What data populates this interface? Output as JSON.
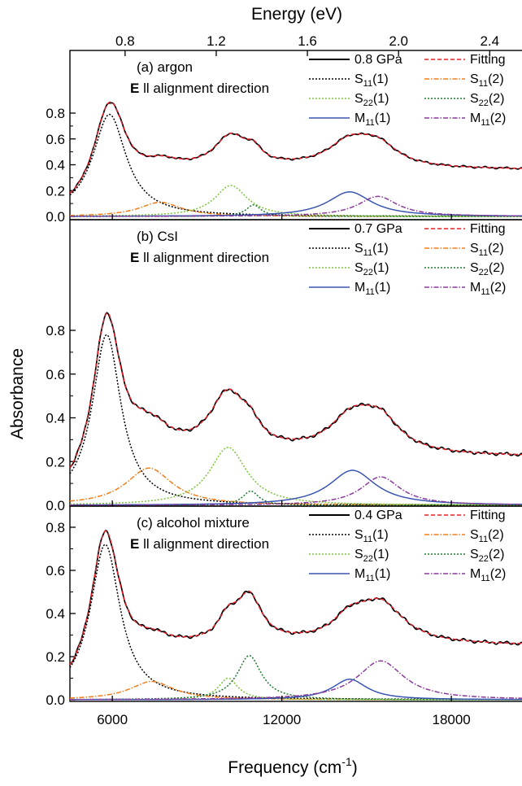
{
  "chart_data": {
    "type": "line",
    "x_axis": {
      "label": "Frequency (cm",
      "label_sup": "-1",
      "label_close": ")",
      "range": [
        4500,
        20500
      ],
      "ticks": [
        6000,
        12000,
        18000
      ],
      "tick_labels": [
        "6000",
        "12000",
        "18000"
      ]
    },
    "top_axis": {
      "label": "Energy (eV)",
      "ticks": [
        0.8,
        1.2,
        1.6,
        2.0,
        2.4
      ],
      "tick_labels": [
        "0.8",
        "1.2",
        "1.6",
        "2.0",
        "2.4"
      ],
      "unit_conversion_cm_per_eV": 8065.54
    },
    "y_axis": {
      "label": "Absorbance",
      "range": [
        0,
        0.95
      ],
      "ticks": [
        0.0,
        0.2,
        0.4,
        0.6,
        0.8
      ],
      "tick_labels": [
        "0.0",
        "0.2",
        "0.4",
        "0.6",
        "0.8"
      ]
    },
    "legend_names": {
      "fitting": "Fitting",
      "S11_1": "S11(1)",
      "S11_2": "S11(2)",
      "S22_1": "S22(1)",
      "S22_2": "S22(2)",
      "M11_1": "M11(1)",
      "M11_2": "M11(2)"
    },
    "colors": {
      "data": "#000000",
      "fitting": "#e8202a",
      "S11_1": "#000000",
      "S11_2": "#f07d1a",
      "S22_1": "#7dc43c",
      "S22_2": "#1e7a2e",
      "M11_1": "#3a56b0",
      "M11_2": "#8a3a9a"
    },
    "panels": [
      {
        "label": "(a) argon",
        "subtitle_bold": "E",
        "subtitle_rest": " ll alignment direction",
        "pressure": "0.8 GPa",
        "components": {
          "S11_1": {
            "center": 5900,
            "amplitude": 0.79,
            "width": 720
          },
          "S11_2": {
            "center": 7700,
            "amplitude": 0.11,
            "width": 900
          },
          "S22_1": {
            "center": 10200,
            "amplitude": 0.24,
            "width": 700
          },
          "S22_2": {
            "center": 11000,
            "amplitude": 0.09,
            "width": 320
          },
          "M11_1": {
            "center": 14400,
            "amplitude": 0.19,
            "width": 950
          },
          "M11_2": {
            "center": 15400,
            "amplitude": 0.155,
            "width": 850
          }
        },
        "baseline_offset": 0.36,
        "baseline_slope": 0.0
      },
      {
        "label": "(b) CsI",
        "subtitle_bold": "E",
        "subtitle_rest": " ll alignment direction",
        "pressure": "0.7 GPa",
        "components": {
          "S11_1": {
            "center": 5800,
            "amplitude": 0.78,
            "width": 620
          },
          "S11_2": {
            "center": 7300,
            "amplitude": 0.17,
            "width": 1000
          },
          "S22_1": {
            "center": 10100,
            "amplitude": 0.265,
            "width": 800
          },
          "S22_2": {
            "center": 10900,
            "amplitude": 0.065,
            "width": 350
          },
          "M11_1": {
            "center": 14500,
            "amplitude": 0.16,
            "width": 1000
          },
          "M11_2": {
            "center": 15500,
            "amplitude": 0.13,
            "width": 850
          }
        },
        "baseline_offset": 0.22,
        "baseline_slope": 0.0
      },
      {
        "label": "(c) alcohol mixture",
        "subtitle_bold": "E",
        "subtitle_rest": " ll alignment direction",
        "pressure": "0.4 GPa",
        "components": {
          "S11_1": {
            "center": 5750,
            "amplitude": 0.72,
            "width": 640
          },
          "S11_2": {
            "center": 7400,
            "amplitude": 0.085,
            "width": 950
          },
          "S22_1": {
            "center": 10100,
            "amplitude": 0.1,
            "width": 420
          },
          "S22_2": {
            "center": 10850,
            "amplitude": 0.205,
            "width": 520
          },
          "M11_1": {
            "center": 14400,
            "amplitude": 0.095,
            "width": 750
          },
          "M11_2": {
            "center": 15500,
            "amplitude": 0.18,
            "width": 1000
          }
        },
        "baseline_offset": 0.25,
        "baseline_slope": 0.0
      }
    ]
  }
}
